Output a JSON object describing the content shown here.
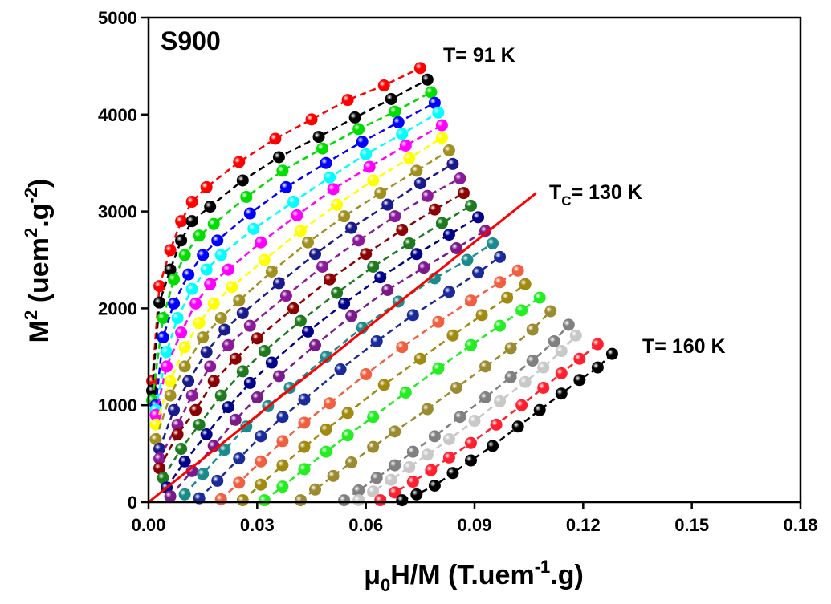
{
  "chart_data": {
    "type": "scatter",
    "panel_label": "S900",
    "annotations": {
      "low": "T= 91 K",
      "tc": {
        "base": "T",
        "sub": "C",
        "rest": "= 130 K"
      },
      "high": "T= 160 K"
    },
    "xlabel": {
      "a": "μ",
      "sub": "0",
      "b": "H/M (T.uem",
      "sup": "-1",
      "c": ".g)"
    },
    "ylabel": {
      "a": "M",
      "sup1": "2",
      "b": " (uem",
      "sup2": "2",
      "c": ".g",
      "sup3": "-2",
      "d": ")"
    },
    "xlim": [
      0,
      0.18
    ],
    "ylim": [
      0,
      5000
    ],
    "xticks": [
      {
        "value": 0,
        "label": "0.00"
      },
      {
        "value": 0.03,
        "label": "0.03"
      },
      {
        "value": 0.06,
        "label": "0.06"
      },
      {
        "value": 0.09,
        "label": "0.09"
      },
      {
        "value": 0.12,
        "label": "0.12"
      },
      {
        "value": 0.15,
        "label": "0.15"
      },
      {
        "value": 0.18,
        "label": "0.18"
      }
    ],
    "yticks": [
      0,
      1000,
      2000,
      3000,
      4000,
      5000
    ],
    "series": [
      {
        "color": "#ff0000",
        "x": [
          0.001,
          0.003,
          0.006,
          0.009,
          0.012,
          0.016,
          0.025,
          0.035,
          0.045,
          0.055,
          0.065,
          0.075
        ],
        "values": [
          1250,
          2230,
          2600,
          2900,
          3100,
          3250,
          3510,
          3750,
          3950,
          4150,
          4300,
          4480
        ]
      },
      {
        "color": "#000000",
        "x": [
          0.001,
          0.003,
          0.006,
          0.009,
          0.012,
          0.017,
          0.026,
          0.036,
          0.047,
          0.057,
          0.067,
          0.077
        ],
        "values": [
          1150,
          2060,
          2400,
          2700,
          2900,
          3050,
          3320,
          3560,
          3770,
          3970,
          4160,
          4360
        ]
      },
      {
        "color": "#00dd00",
        "x": [
          0.001,
          0.004,
          0.007,
          0.01,
          0.014,
          0.018,
          0.027,
          0.037,
          0.048,
          0.058,
          0.068,
          0.078
        ],
        "values": [
          1050,
          1900,
          2300,
          2550,
          2750,
          2870,
          3150,
          3420,
          3650,
          3850,
          4030,
          4230
        ]
      },
      {
        "color": "#0000ff",
        "x": [
          0.002,
          0.004,
          0.007,
          0.011,
          0.015,
          0.019,
          0.028,
          0.038,
          0.049,
          0.059,
          0.069,
          0.079
        ],
        "values": [
          1000,
          1700,
          2050,
          2350,
          2550,
          2700,
          2980,
          3250,
          3500,
          3720,
          3920,
          4120
        ]
      },
      {
        "color": "#00ffff",
        "x": [
          0.002,
          0.005,
          0.008,
          0.012,
          0.016,
          0.02,
          0.029,
          0.04,
          0.05,
          0.06,
          0.07,
          0.08
        ],
        "values": [
          950,
          1550,
          1900,
          2200,
          2400,
          2550,
          2820,
          3100,
          3350,
          3590,
          3800,
          4020
        ]
      },
      {
        "color": "#ff00ff",
        "x": [
          0.002,
          0.005,
          0.009,
          0.013,
          0.017,
          0.022,
          0.031,
          0.041,
          0.051,
          0.061,
          0.071,
          0.081
        ],
        "values": [
          900,
          1400,
          1750,
          2050,
          2250,
          2400,
          2680,
          2960,
          3230,
          3460,
          3680,
          3890
        ]
      },
      {
        "color": "#ffff00",
        "x": [
          0.002,
          0.006,
          0.01,
          0.014,
          0.018,
          0.023,
          0.032,
          0.042,
          0.052,
          0.062,
          0.072,
          0.081
        ],
        "values": [
          800,
          1250,
          1600,
          1850,
          2050,
          2220,
          2500,
          2800,
          3070,
          3320,
          3550,
          3760
        ]
      },
      {
        "color": "#a09020",
        "x": [
          0.002,
          0.006,
          0.01,
          0.015,
          0.02,
          0.025,
          0.034,
          0.044,
          0.054,
          0.064,
          0.074,
          0.083
        ],
        "values": [
          650,
          1100,
          1400,
          1700,
          1900,
          2080,
          2380,
          2680,
          2950,
          3190,
          3420,
          3630
        ]
      },
      {
        "color": "#1a1a8c",
        "x": [
          0.003,
          0.007,
          0.011,
          0.016,
          0.021,
          0.026,
          0.036,
          0.046,
          0.056,
          0.066,
          0.075,
          0.084
        ],
        "values": [
          550,
          950,
          1250,
          1550,
          1780,
          1950,
          2260,
          2560,
          2830,
          3070,
          3290,
          3490
        ]
      },
      {
        "color": "#8a1a9a",
        "x": [
          0.003,
          0.008,
          0.012,
          0.017,
          0.022,
          0.028,
          0.038,
          0.048,
          0.058,
          0.068,
          0.077,
          0.086
        ],
        "values": [
          450,
          800,
          1100,
          1400,
          1620,
          1820,
          2130,
          2430,
          2700,
          2950,
          3160,
          3340
        ]
      },
      {
        "color": "#8b0000",
        "x": [
          0.003,
          0.008,
          0.013,
          0.018,
          0.024,
          0.03,
          0.04,
          0.05,
          0.06,
          0.07,
          0.079,
          0.087
        ],
        "values": [
          350,
          700,
          950,
          1250,
          1480,
          1690,
          2000,
          2300,
          2560,
          2810,
          3020,
          3190
        ]
      },
      {
        "color": "#1e7a1e",
        "x": [
          0.004,
          0.009,
          0.014,
          0.02,
          0.026,
          0.032,
          0.042,
          0.052,
          0.062,
          0.072,
          0.081,
          0.089
        ],
        "values": [
          250,
          550,
          800,
          1100,
          1350,
          1560,
          1870,
          2160,
          2430,
          2670,
          2880,
          3060
        ]
      },
      {
        "color": "#000088",
        "x": [
          0.005,
          0.01,
          0.016,
          0.022,
          0.028,
          0.034,
          0.044,
          0.054,
          0.064,
          0.074,
          0.083,
          0.091
        ],
        "values": [
          150,
          420,
          700,
          980,
          1230,
          1440,
          1760,
          2050,
          2320,
          2560,
          2760,
          2940
        ]
      },
      {
        "color": "#7a1a8a",
        "x": [
          0.006,
          0.012,
          0.018,
          0.024,
          0.03,
          0.036,
          0.046,
          0.056,
          0.066,
          0.076,
          0.085,
          0.093
        ],
        "values": [
          60,
          320,
          580,
          850,
          1080,
          1300,
          1620,
          1920,
          2190,
          2420,
          2620,
          2800
        ]
      },
      {
        "color": "#1a8a8a",
        "x": [
          0.01,
          0.015,
          0.021,
          0.027,
          0.033,
          0.039,
          0.049,
          0.059,
          0.069,
          0.079,
          0.088,
          0.095
        ],
        "values": [
          80,
          290,
          540,
          780,
          990,
          1180,
          1500,
          1800,
          2070,
          2310,
          2500,
          2670
        ]
      },
      {
        "color": "#1a2a9a",
        "x": [
          0.014,
          0.019,
          0.025,
          0.031,
          0.037,
          0.043,
          0.053,
          0.063,
          0.073,
          0.083,
          0.091,
          0.097
        ],
        "values": [
          40,
          220,
          450,
          680,
          880,
          1060,
          1370,
          1660,
          1930,
          2170,
          2370,
          2530
        ]
      },
      {
        "color": "#f06040",
        "x": [
          0.02,
          0.025,
          0.031,
          0.037,
          0.043,
          0.05,
          0.06,
          0.07,
          0.08,
          0.089,
          0.097,
          0.102
        ],
        "values": [
          30,
          200,
          420,
          630,
          820,
          1020,
          1320,
          1600,
          1860,
          2080,
          2270,
          2390
        ]
      },
      {
        "color": "#a08a10",
        "x": [
          0.026,
          0.031,
          0.037,
          0.043,
          0.049,
          0.055,
          0.065,
          0.075,
          0.084,
          0.092,
          0.099,
          0.104
        ],
        "values": [
          20,
          180,
          380,
          570,
          750,
          920,
          1210,
          1480,
          1720,
          1930,
          2110,
          2250
        ]
      },
      {
        "color": "#22ee22",
        "x": [
          0.032,
          0.037,
          0.043,
          0.049,
          0.055,
          0.062,
          0.071,
          0.08,
          0.089,
          0.097,
          0.103,
          0.108
        ],
        "values": [
          20,
          160,
          340,
          520,
          690,
          880,
          1130,
          1380,
          1620,
          1820,
          1980,
          2110
        ]
      },
      {
        "color": "#9a8a30",
        "x": [
          0.042,
          0.046,
          0.051,
          0.056,
          0.062,
          0.068,
          0.077,
          0.085,
          0.093,
          0.1,
          0.106,
          0.111
        ],
        "values": [
          20,
          130,
          270,
          410,
          570,
          730,
          960,
          1180,
          1400,
          1590,
          1780,
          1970
        ]
      },
      {
        "color": "#808080",
        "x": [
          0.054,
          0.058,
          0.063,
          0.068,
          0.073,
          0.079,
          0.086,
          0.093,
          0.1,
          0.106,
          0.112,
          0.116
        ],
        "values": [
          20,
          120,
          250,
          380,
          520,
          680,
          880,
          1080,
          1290,
          1460,
          1660,
          1830
        ]
      },
      {
        "color": "#c8c8c8",
        "x": [
          0.058,
          0.062,
          0.067,
          0.072,
          0.077,
          0.083,
          0.09,
          0.097,
          0.104,
          0.109,
          0.114,
          0.118
        ],
        "values": [
          20,
          110,
          230,
          360,
          490,
          650,
          840,
          1040,
          1240,
          1390,
          1560,
          1720
        ]
      },
      {
        "color": "#ff2030",
        "x": [
          0.064,
          0.068,
          0.073,
          0.078,
          0.083,
          0.089,
          0.096,
          0.103,
          0.109,
          0.114,
          0.119,
          0.124
        ],
        "values": [
          20,
          100,
          210,
          330,
          460,
          610,
          800,
          1000,
          1180,
          1330,
          1480,
          1630
        ]
      },
      {
        "color": "#000000",
        "x": [
          0.07,
          0.074,
          0.079,
          0.084,
          0.089,
          0.095,
          0.102,
          0.108,
          0.114,
          0.119,
          0.124,
          0.128
        ],
        "values": [
          20,
          80,
          170,
          300,
          430,
          580,
          780,
          950,
          1120,
          1260,
          1390,
          1530
        ]
      },
      {
        "color": "#ff0000",
        "style": "solid",
        "x": [
          0,
          0.107
        ],
        "values": [
          0,
          3190
        ]
      }
    ]
  }
}
